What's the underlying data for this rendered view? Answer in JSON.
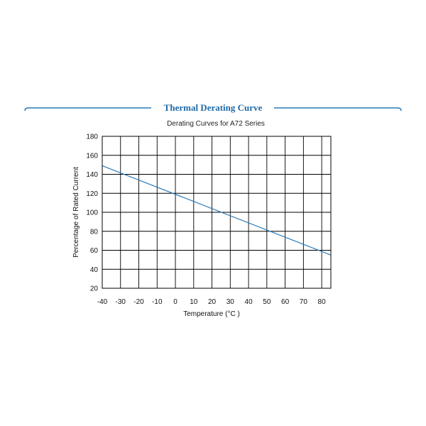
{
  "header": {
    "title": "Thermal Derating Curve",
    "accent_color": "#2a7ab8",
    "title_color": "#1f6aa8"
  },
  "chart_data": {
    "type": "line",
    "title": "Derating Curves for A72 Series",
    "xlabel": "Temperature (°C )",
    "ylabel": "Percentage of Rated Current",
    "xlim": [
      -40,
      85
    ],
    "ylim": [
      20,
      180
    ],
    "x_ticks": [
      -40,
      -30,
      -20,
      -10,
      0,
      10,
      20,
      30,
      40,
      50,
      60,
      70,
      80
    ],
    "y_ticks": [
      20,
      40,
      60,
      80,
      100,
      120,
      140,
      160,
      180
    ],
    "grid": true,
    "line_color": "#2a7ab8",
    "series": [
      {
        "x": [
          -40,
          85
        ],
        "y": [
          149,
          55
        ]
      }
    ]
  }
}
